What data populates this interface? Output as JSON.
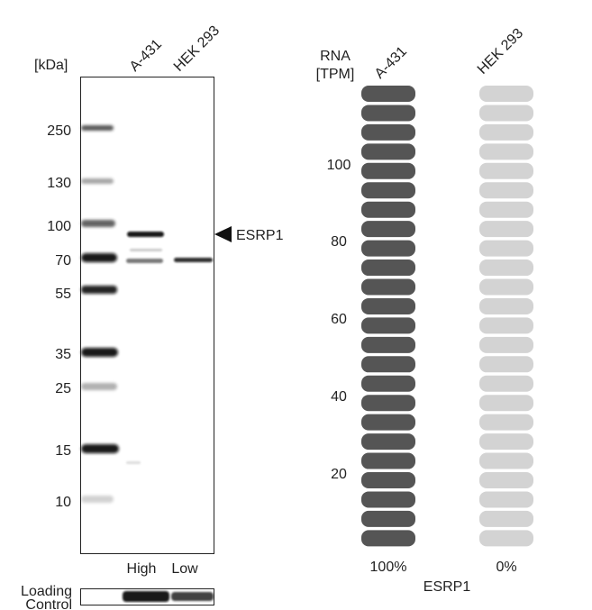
{
  "blot": {
    "unit_label": "[kDa]",
    "lanes": [
      "A-431",
      "HEK 293"
    ],
    "markers": [
      "250",
      "130",
      "100",
      "70",
      "55",
      "35",
      "25",
      "15",
      "10"
    ],
    "target_label": "ESRP1",
    "expression_labels": [
      "High",
      "Low"
    ],
    "loading_control_label": [
      "Loading",
      "Control"
    ]
  },
  "rna": {
    "title": [
      "RNA",
      "[TPM]"
    ],
    "columns": [
      "A-431",
      "HEK 293"
    ],
    "scale_ticks": [
      "100",
      "80",
      "60",
      "40",
      "20"
    ],
    "column_values": [
      "100%",
      "0%"
    ],
    "gene_label": "ESRP1",
    "colors": {
      "high": "#555555",
      "low": "#d3d3d3"
    }
  }
}
